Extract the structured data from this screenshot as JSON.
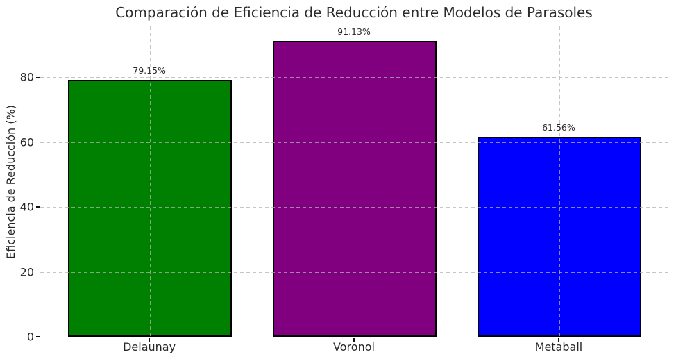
{
  "figure": {
    "background": "#ffffff",
    "text_color": "#262626"
  },
  "chart_data": {
    "type": "bar",
    "title": "Comparación de Eficiencia de Reducción entre Modelos de Parasoles",
    "xlabel": "",
    "ylabel": "Eficiencia de Reducción (%)",
    "categories": [
      "Delaunay",
      "Voronoi",
      "Metaball"
    ],
    "values": [
      79.15,
      91.13,
      61.56
    ],
    "value_labels": [
      "79.15%",
      "91.13%",
      "61.56%"
    ],
    "bar_colors": [
      "#008000",
      "#800080",
      "#0000ff"
    ],
    "bar_edge_color": "#000000",
    "bar_width_units": 0.8,
    "xlim": [
      -0.536,
      2.536
    ],
    "ylim": [
      0,
      95.69
    ],
    "yticks": [
      0,
      20,
      40,
      60,
      80
    ],
    "grid": {
      "visible": true,
      "style": "dashed",
      "color": "#b2b2b2",
      "horizontal_at_yticks": true,
      "vertical_at_category_centers": true,
      "drawn_above_bars": true
    },
    "legend": "none",
    "spines": [
      "left",
      "bottom"
    ]
  }
}
